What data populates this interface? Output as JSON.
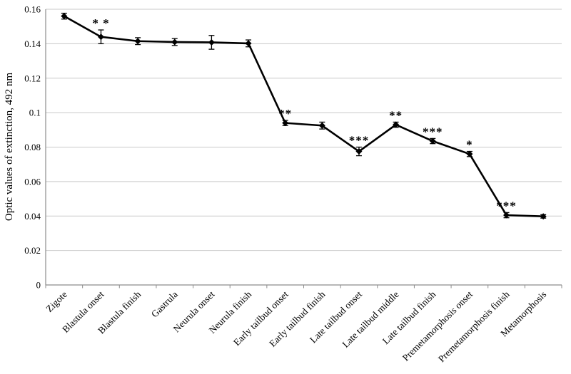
{
  "chart_data": {
    "type": "line",
    "title": "",
    "xlabel": "",
    "ylabel": "Optic values of extinction, 492 nm",
    "ylim": [
      0,
      0.16
    ],
    "ytick_step": 0.02,
    "ytick_labels": [
      "0",
      "0.02",
      "0.04",
      "0.06",
      "0.08",
      "0.1",
      "0.12",
      "0.14",
      "0.16"
    ],
    "grid": true,
    "legend_position": "none",
    "marker": "diamond",
    "categories": [
      "Zigote",
      "Blastula onset",
      "Blastula finish",
      "Gastrula",
      "Neurula onset",
      "Neurula finish",
      "Early tailbud onset",
      "Early tailbud finish",
      "Late tailbud onset",
      "Late tailbud middle",
      "Late tailbud finish",
      "Premetamorphosis onset",
      "Premetamorphosis finish",
      "Metamorphosis"
    ],
    "series": [
      {
        "name": "Optic values of extinction",
        "values": [
          0.156,
          0.144,
          0.1415,
          0.141,
          0.1408,
          0.1402,
          0.094,
          0.0925,
          0.0775,
          0.093,
          0.0835,
          0.076,
          0.0405,
          0.0398
        ],
        "errors": [
          0.0017,
          0.004,
          0.002,
          0.002,
          0.004,
          0.002,
          0.0015,
          0.002,
          0.0025,
          0.0015,
          0.0015,
          0.0015,
          0.0015,
          0.001
        ],
        "annotations": [
          "",
          "* *",
          "",
          "",
          "",
          "",
          "**",
          "",
          "***",
          "**",
          "***",
          "*",
          "***",
          ""
        ]
      }
    ],
    "colors": {
      "line": "#000000",
      "marker": "#000000",
      "error_bar": "#000000",
      "grid": "#c9c9c9",
      "axis": "#8c8c8c",
      "text": "#000000",
      "background": "#ffffff"
    }
  }
}
